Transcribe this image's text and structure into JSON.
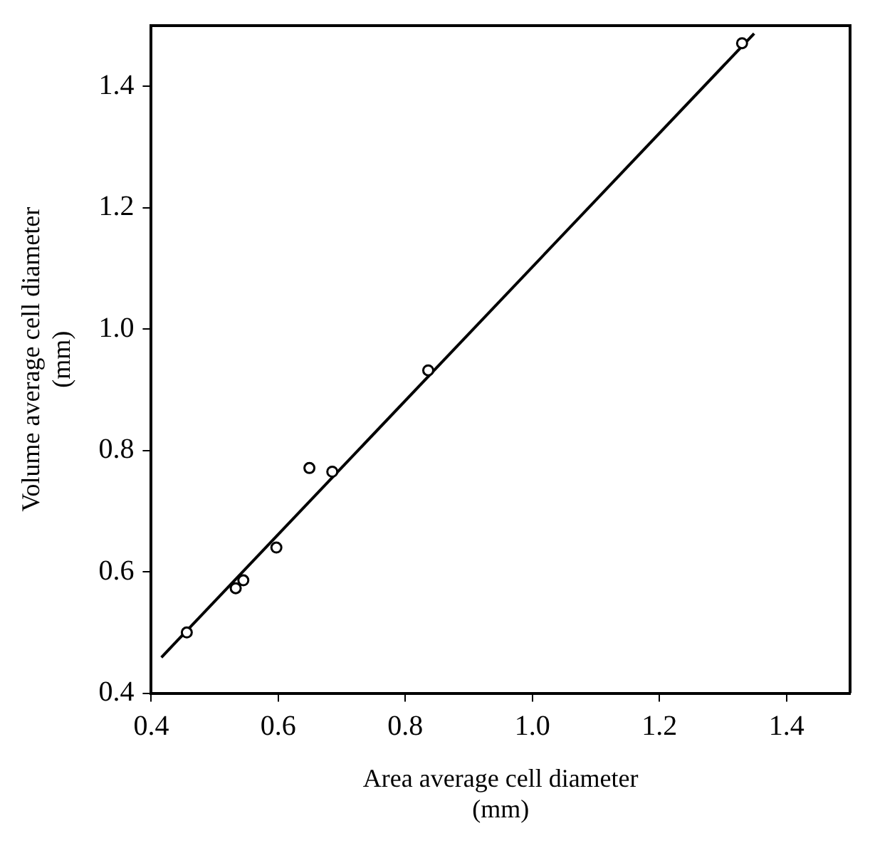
{
  "chart_data": {
    "type": "scatter",
    "xlabel": "Area average cell diameter\n(mm)",
    "ylabel": "Volume average cell diameter\n(mm)",
    "series": [
      {
        "color": "#000000",
        "marker": "circle",
        "x": [
          0.456,
          0.533,
          0.545,
          0.597,
          0.649,
          0.685,
          0.836,
          1.33
        ],
        "values": [
          0.5,
          0.573,
          0.586,
          0.64,
          0.771,
          0.765,
          0.932,
          1.471
        ]
      },
      {
        "type": "line",
        "color": "#000000",
        "marker": "none",
        "line_style": "solid",
        "x": [
          0.416,
          1.349
        ],
        "values": [
          0.459,
          1.487
        ]
      }
    ],
    "xlim": [
      0.4,
      1.5
    ],
    "ylim": [
      0.4,
      1.5
    ],
    "xticks": [
      0.4,
      0.6,
      0.8,
      {
        "value": 1.0,
        "label": "1.0"
      },
      1.2,
      1.4
    ],
    "yticks": [
      0.4,
      0.6,
      0.8,
      {
        "value": 1.0,
        "label": "1.0"
      },
      1.2,
      1.4
    ],
    "grid": false,
    "legend": false
  }
}
